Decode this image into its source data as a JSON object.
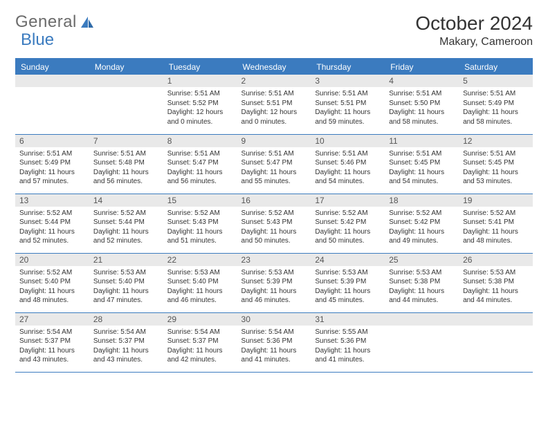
{
  "logo": {
    "text_a": "General",
    "text_b": "Blue"
  },
  "header": {
    "title": "October 2024",
    "location": "Makary, Cameroon"
  },
  "colors": {
    "header_bg": "#3b7bbf",
    "header_text": "#ffffff",
    "daynum_bg": "#e9e9e9",
    "border": "#3b7bbf",
    "body_text": "#333333"
  },
  "weekdays": [
    "Sunday",
    "Monday",
    "Tuesday",
    "Wednesday",
    "Thursday",
    "Friday",
    "Saturday"
  ],
  "weeks": [
    [
      null,
      null,
      {
        "n": "1",
        "sr": "5:51 AM",
        "ss": "5:52 PM",
        "dl": "12 hours and 0 minutes."
      },
      {
        "n": "2",
        "sr": "5:51 AM",
        "ss": "5:51 PM",
        "dl": "12 hours and 0 minutes."
      },
      {
        "n": "3",
        "sr": "5:51 AM",
        "ss": "5:51 PM",
        "dl": "11 hours and 59 minutes."
      },
      {
        "n": "4",
        "sr": "5:51 AM",
        "ss": "5:50 PM",
        "dl": "11 hours and 58 minutes."
      },
      {
        "n": "5",
        "sr": "5:51 AM",
        "ss": "5:49 PM",
        "dl": "11 hours and 58 minutes."
      }
    ],
    [
      {
        "n": "6",
        "sr": "5:51 AM",
        "ss": "5:49 PM",
        "dl": "11 hours and 57 minutes."
      },
      {
        "n": "7",
        "sr": "5:51 AM",
        "ss": "5:48 PM",
        "dl": "11 hours and 56 minutes."
      },
      {
        "n": "8",
        "sr": "5:51 AM",
        "ss": "5:47 PM",
        "dl": "11 hours and 56 minutes."
      },
      {
        "n": "9",
        "sr": "5:51 AM",
        "ss": "5:47 PM",
        "dl": "11 hours and 55 minutes."
      },
      {
        "n": "10",
        "sr": "5:51 AM",
        "ss": "5:46 PM",
        "dl": "11 hours and 54 minutes."
      },
      {
        "n": "11",
        "sr": "5:51 AM",
        "ss": "5:45 PM",
        "dl": "11 hours and 54 minutes."
      },
      {
        "n": "12",
        "sr": "5:51 AM",
        "ss": "5:45 PM",
        "dl": "11 hours and 53 minutes."
      }
    ],
    [
      {
        "n": "13",
        "sr": "5:52 AM",
        "ss": "5:44 PM",
        "dl": "11 hours and 52 minutes."
      },
      {
        "n": "14",
        "sr": "5:52 AM",
        "ss": "5:44 PM",
        "dl": "11 hours and 52 minutes."
      },
      {
        "n": "15",
        "sr": "5:52 AM",
        "ss": "5:43 PM",
        "dl": "11 hours and 51 minutes."
      },
      {
        "n": "16",
        "sr": "5:52 AM",
        "ss": "5:43 PM",
        "dl": "11 hours and 50 minutes."
      },
      {
        "n": "17",
        "sr": "5:52 AM",
        "ss": "5:42 PM",
        "dl": "11 hours and 50 minutes."
      },
      {
        "n": "18",
        "sr": "5:52 AM",
        "ss": "5:42 PM",
        "dl": "11 hours and 49 minutes."
      },
      {
        "n": "19",
        "sr": "5:52 AM",
        "ss": "5:41 PM",
        "dl": "11 hours and 48 minutes."
      }
    ],
    [
      {
        "n": "20",
        "sr": "5:52 AM",
        "ss": "5:40 PM",
        "dl": "11 hours and 48 minutes."
      },
      {
        "n": "21",
        "sr": "5:53 AM",
        "ss": "5:40 PM",
        "dl": "11 hours and 47 minutes."
      },
      {
        "n": "22",
        "sr": "5:53 AM",
        "ss": "5:40 PM",
        "dl": "11 hours and 46 minutes."
      },
      {
        "n": "23",
        "sr": "5:53 AM",
        "ss": "5:39 PM",
        "dl": "11 hours and 46 minutes."
      },
      {
        "n": "24",
        "sr": "5:53 AM",
        "ss": "5:39 PM",
        "dl": "11 hours and 45 minutes."
      },
      {
        "n": "25",
        "sr": "5:53 AM",
        "ss": "5:38 PM",
        "dl": "11 hours and 44 minutes."
      },
      {
        "n": "26",
        "sr": "5:53 AM",
        "ss": "5:38 PM",
        "dl": "11 hours and 44 minutes."
      }
    ],
    [
      {
        "n": "27",
        "sr": "5:54 AM",
        "ss": "5:37 PM",
        "dl": "11 hours and 43 minutes."
      },
      {
        "n": "28",
        "sr": "5:54 AM",
        "ss": "5:37 PM",
        "dl": "11 hours and 43 minutes."
      },
      {
        "n": "29",
        "sr": "5:54 AM",
        "ss": "5:37 PM",
        "dl": "11 hours and 42 minutes."
      },
      {
        "n": "30",
        "sr": "5:54 AM",
        "ss": "5:36 PM",
        "dl": "11 hours and 41 minutes."
      },
      {
        "n": "31",
        "sr": "5:55 AM",
        "ss": "5:36 PM",
        "dl": "11 hours and 41 minutes."
      },
      null,
      null
    ]
  ],
  "labels": {
    "sunrise": "Sunrise:",
    "sunset": "Sunset:",
    "daylight": "Daylight:"
  }
}
